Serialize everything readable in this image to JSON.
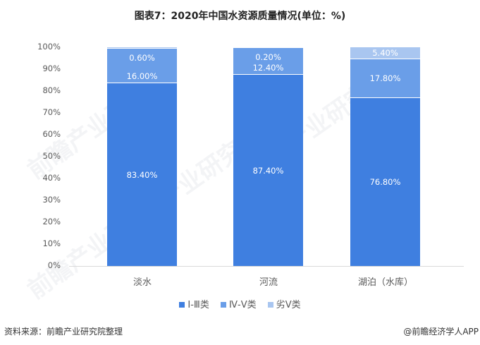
{
  "title": "图表7：2020年中国水资源质量情况(单位：%)",
  "chart_data": {
    "type": "bar",
    "stacked": true,
    "title": "图表7：2020年中国水资源质量情况(单位：%)",
    "xlabel": "",
    "ylabel": "",
    "ylim": [
      0,
      100
    ],
    "yticks": [
      "0%",
      "10%",
      "20%",
      "30%",
      "40%",
      "50%",
      "60%",
      "70%",
      "80%",
      "90%",
      "100%"
    ],
    "categories": [
      "淡水",
      "河流",
      "湖泊（水库）"
    ],
    "series": [
      {
        "name": "Ⅰ-Ⅲ类",
        "color": "#3f7fe0",
        "values": [
          83.4,
          87.4,
          76.8
        ],
        "labels": [
          "83.40%",
          "87.40%",
          "76.80%"
        ]
      },
      {
        "name": "Ⅳ-Ⅴ类",
        "color": "#6a9ee8",
        "values": [
          16.0,
          12.4,
          17.8
        ],
        "labels": [
          "16.00%",
          "12.40%",
          "17.80%"
        ]
      },
      {
        "name": "劣Ⅴ类",
        "color": "#a9c6f0",
        "values": [
          0.6,
          0.2,
          5.4
        ],
        "labels": [
          "0.60%",
          "0.20%",
          "5.40%"
        ]
      }
    ],
    "grid": false,
    "legend_position": "bottom"
  },
  "legend": [
    {
      "label": "Ⅰ-Ⅲ类",
      "color": "#3f7fe0"
    },
    {
      "label": "Ⅳ-Ⅴ类",
      "color": "#6a9ee8"
    },
    {
      "label": "劣Ⅴ类",
      "color": "#a9c6f0"
    }
  ],
  "footer": {
    "source": "资料来源：前瞻产业研究院整理",
    "credit": "@前瞻经济学人APP"
  },
  "watermark": "前瞻产业研究院"
}
